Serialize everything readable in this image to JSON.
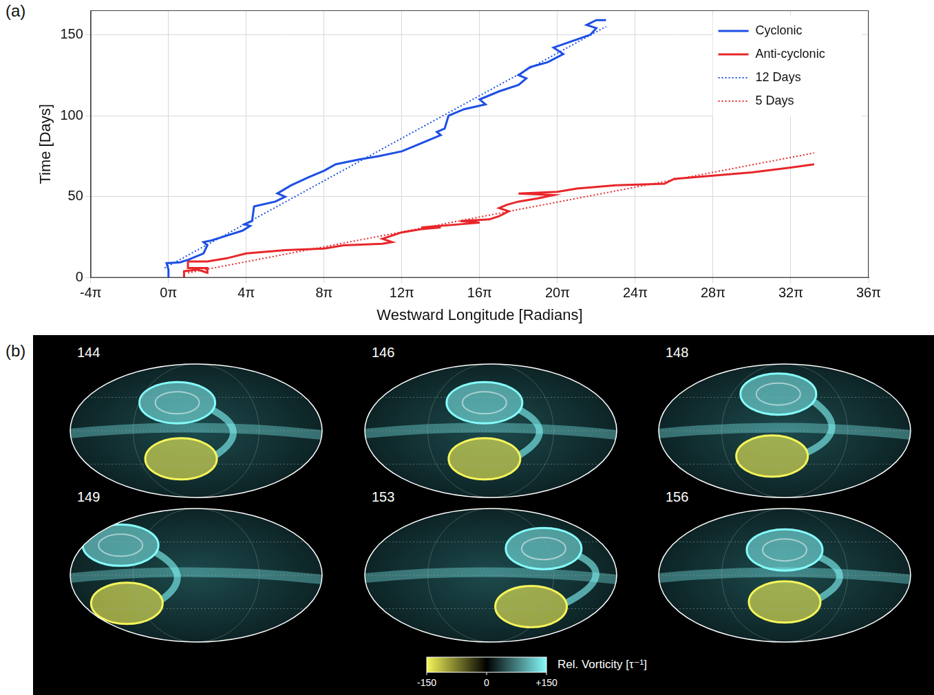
{
  "chart_data": {
    "type": "line",
    "panel": "(a)",
    "x_label": "Westward Longitude [Radians]",
    "y_label": "Time [Days]",
    "xlim": [
      -4,
      36
    ],
    "xticks": [
      {
        "value": -4,
        "label": "-4π"
      },
      {
        "value": 0,
        "label": "0π"
      },
      {
        "value": 4,
        "label": "4π"
      },
      {
        "value": 8,
        "label": "8π"
      },
      {
        "value": 12,
        "label": "12π"
      },
      {
        "value": 16,
        "label": "16π"
      },
      {
        "value": 20,
        "label": "20π"
      },
      {
        "value": 24,
        "label": "24π"
      },
      {
        "value": 28,
        "label": "28π"
      },
      {
        "value": 32,
        "label": "32π"
      },
      {
        "value": 36,
        "label": "36π"
      }
    ],
    "ylim": [
      0,
      165
    ],
    "yticks": [
      0,
      50,
      100,
      150
    ],
    "grid": true,
    "legend": "upper right",
    "series": [
      {
        "name": "Cyclonic",
        "color": "#1c4fe4",
        "line_style": "solid",
        "x": [
          0,
          0,
          -0.1,
          0.6,
          1,
          1.8,
          2,
          1.8,
          2.2,
          3,
          3.8,
          4.2,
          3.9,
          4.3,
          4.4,
          5.5,
          6,
          5.6,
          6.3,
          7.2,
          8,
          8.6,
          9.8,
          10.8,
          12,
          13,
          14,
          13.8,
          14.2,
          14.4,
          15.2,
          16.3,
          16,
          17,
          18,
          18.4,
          18,
          18.6,
          19.5,
          20.3,
          19.8,
          21,
          21.7,
          22,
          21.5,
          22,
          22.5
        ],
        "values": [
          0,
          5,
          9,
          9.5,
          11,
          15,
          20,
          22,
          23,
          26,
          29,
          32,
          33,
          35,
          44,
          47,
          50,
          52,
          57,
          62,
          66,
          70,
          73,
          75,
          78,
          83,
          88,
          90,
          92,
          100,
          104,
          107,
          110,
          115,
          119,
          123,
          125,
          130,
          133,
          138,
          142,
          147,
          150,
          154,
          156,
          159,
          159
        ]
      },
      {
        "name": "Anti-cyclonic",
        "color": "#e8262a",
        "line_style": "solid",
        "x": [
          0.8,
          0.8,
          1.5,
          2,
          2,
          1,
          1,
          2,
          3,
          4,
          6,
          8,
          9,
          11,
          11.5,
          11,
          12,
          13,
          14,
          13,
          15,
          16,
          15,
          16.5,
          17,
          17.5,
          17,
          17.4,
          18,
          19,
          19.8,
          18,
          20,
          21,
          23,
          25.5,
          26,
          28,
          30,
          32,
          33.2
        ],
        "values": [
          0,
          4,
          5,
          3,
          6,
          6,
          10,
          10,
          12,
          15,
          17,
          18,
          20,
          21,
          22,
          24,
          28,
          30,
          31,
          31,
          33,
          34,
          35,
          36,
          38,
          41,
          43,
          45,
          47,
          49,
          51,
          52,
          53,
          55,
          57,
          58,
          61,
          63,
          65,
          68,
          70
        ]
      },
      {
        "name": "12 Days",
        "color": "#1c4fe4",
        "line_style": "dotted",
        "x": [
          -0.2,
          22.5
        ],
        "values": [
          6,
          155
        ]
      },
      {
        "name": "5 Days",
        "color": "#e8262a",
        "line_style": "dotted",
        "x": [
          1,
          33.2
        ],
        "values": [
          3,
          77
        ]
      }
    ]
  },
  "panel_b": {
    "label": "(b)",
    "frames": [
      "144",
      "146",
      "148",
      "149",
      "153",
      "156"
    ],
    "colorbar": {
      "title": "Rel. Vorticity [τ⁻¹]",
      "range": [
        -150,
        150
      ],
      "ticks": [
        -150,
        0,
        {
          "value": 150,
          "label": "+150"
        }
      ],
      "colors": [
        "#f6f65a",
        "#000000",
        "#86fbfb"
      ]
    }
  }
}
